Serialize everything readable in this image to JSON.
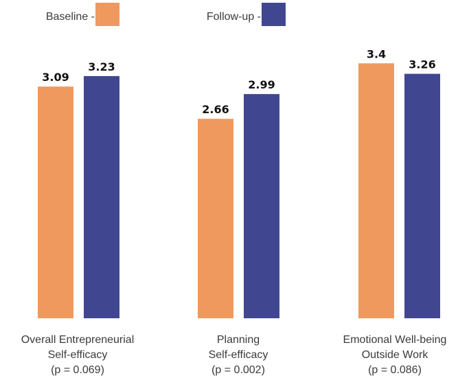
{
  "chart_data": {
    "type": "bar",
    "categories": [
      [
        "Overall Entrepreneurial",
        "Self-efficacy",
        "(p = 0.069)"
      ],
      [
        "Planning",
        "Self-efficacy",
        "(p = 0.002)"
      ],
      [
        "Emotional Well-being",
        "Outside Work",
        "(p = 0.086)"
      ]
    ],
    "series": [
      {
        "name": "Baseline",
        "values": [
          3.09,
          2.66,
          3.4
        ]
      },
      {
        "name": "Follow-up",
        "values": [
          3.23,
          2.99,
          3.26
        ]
      }
    ],
    "value_labels": [
      [
        "3.09",
        "2.66",
        "3.4"
      ],
      [
        "3.23",
        "2.99",
        "3.26"
      ]
    ],
    "legend": [
      {
        "text": "Baseline -",
        "color": "#f0995e"
      },
      {
        "text": "Follow-up -",
        "color": "#404790"
      }
    ],
    "ylim": [
      0,
      3.54
    ],
    "grid": false,
    "legend_position": "top-left",
    "colors": {
      "baseline": "#f0995e",
      "followup": "#404790"
    }
  }
}
